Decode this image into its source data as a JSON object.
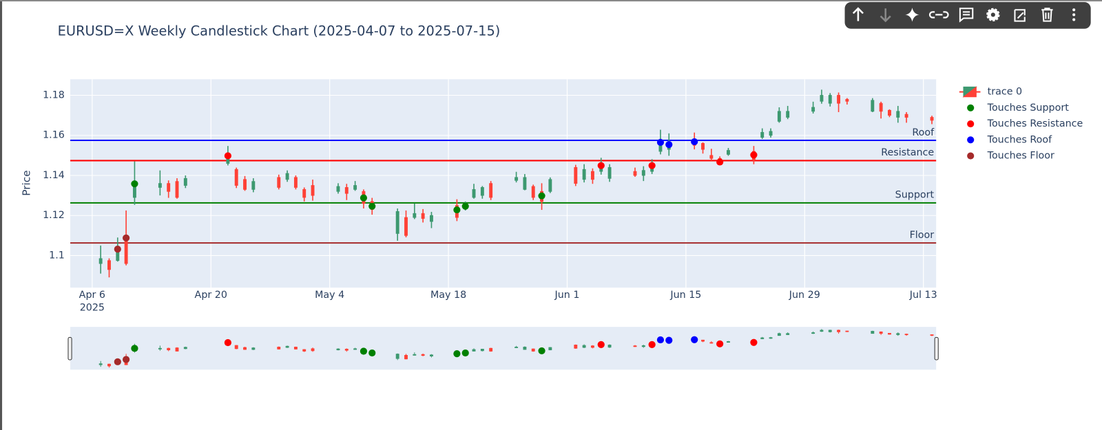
{
  "chart_data": {
    "type": "candlestick",
    "title": "EURUSD=X Weekly Candlestick Chart (2025-04-07 to 2025-07-15)",
    "y_title": "Price",
    "x": [
      "2025-04-07",
      "2025-04-08",
      "2025-04-09",
      "2025-04-10",
      "2025-04-11",
      "2025-04-14",
      "2025-04-15",
      "2025-04-16",
      "2025-04-17",
      "2025-04-22",
      "2025-04-23",
      "2025-04-24",
      "2025-04-25",
      "2025-04-28",
      "2025-04-29",
      "2025-04-30",
      "2025-05-01",
      "2025-05-02",
      "2025-05-05",
      "2025-05-06",
      "2025-05-07",
      "2025-05-08",
      "2025-05-09",
      "2025-05-12",
      "2025-05-13",
      "2025-05-14",
      "2025-05-15",
      "2025-05-16",
      "2025-05-19",
      "2025-05-20",
      "2025-05-21",
      "2025-05-22",
      "2025-05-23",
      "2025-05-26",
      "2025-05-27",
      "2025-05-28",
      "2025-05-29",
      "2025-05-30",
      "2025-06-02",
      "2025-06-03",
      "2025-06-04",
      "2025-06-05",
      "2025-06-06",
      "2025-06-09",
      "2025-06-10",
      "2025-06-11",
      "2025-06-12",
      "2025-06-13",
      "2025-06-16",
      "2025-06-17",
      "2025-06-18",
      "2025-06-19",
      "2025-06-20",
      "2025-06-23",
      "2025-06-24",
      "2025-06-25",
      "2025-06-26",
      "2025-06-27",
      "2025-06-30",
      "2025-07-01",
      "2025-07-02",
      "2025-07-03",
      "2025-07-04",
      "2025-07-07",
      "2025-07-08",
      "2025-07-09",
      "2025-07-10",
      "2025-07-11",
      "2025-07-14"
    ],
    "candles": {
      "name": "trace 0",
      "increasing_color": "#3d9970",
      "decreasing_color": "#ff4136",
      "open": [
        1.096,
        1.0975,
        1.0975,
        1.1095,
        1.129,
        1.134,
        1.136,
        1.137,
        1.135,
        1.146,
        1.143,
        1.138,
        1.133,
        1.139,
        1.138,
        1.139,
        1.133,
        1.135,
        1.132,
        1.134,
        1.133,
        1.132,
        1.127,
        1.111,
        1.119,
        1.119,
        1.121,
        1.117,
        1.125,
        1.1235,
        1.129,
        1.13,
        1.136,
        1.1375,
        1.133,
        1.1345,
        1.132,
        1.132,
        1.144,
        1.138,
        1.142,
        1.142,
        1.1385,
        1.142,
        1.14,
        1.142,
        1.152,
        1.153,
        1.158,
        1.156,
        1.15,
        1.1485,
        1.1505,
        1.152,
        1.159,
        1.16,
        1.167,
        1.169,
        1.172,
        1.177,
        1.176,
        1.18,
        1.178,
        1.172,
        1.176,
        1.1725,
        1.169,
        1.1705,
        1.169
      ],
      "high": [
        1.105,
        1.0986,
        1.109,
        1.1225,
        1.147,
        1.1425,
        1.1375,
        1.1386,
        1.14,
        1.1547,
        1.1439,
        1.1397,
        1.1386,
        1.1404,
        1.1425,
        1.14,
        1.134,
        1.1379,
        1.1361,
        1.1358,
        1.1372,
        1.133,
        1.1288,
        1.1235,
        1.1225,
        1.126,
        1.1232,
        1.1218,
        1.1281,
        1.127,
        1.1358,
        1.1347,
        1.1372,
        1.1418,
        1.1407,
        1.1354,
        1.1361,
        1.139,
        1.1453,
        1.1456,
        1.1435,
        1.1488,
        1.1456,
        1.1439,
        1.1446,
        1.1481,
        1.1628,
        1.161,
        1.1614,
        1.1565,
        1.1533,
        1.1495,
        1.1537,
        1.1547,
        1.1635,
        1.1635,
        1.174,
        1.1747,
        1.1768,
        1.1828,
        1.1811,
        1.1814,
        1.1786,
        1.1786,
        1.1768,
        1.173,
        1.1747,
        1.1716,
        1.1698
      ],
      "low": [
        1.091,
        1.0891,
        1.097,
        1.0951,
        1.1253,
        1.13,
        1.1288,
        1.1284,
        1.1337,
        1.145,
        1.1337,
        1.1323,
        1.1316,
        1.133,
        1.1368,
        1.133,
        1.127,
        1.1274,
        1.1309,
        1.1277,
        1.1323,
        1.1235,
        1.1204,
        1.1074,
        1.1091,
        1.1182,
        1.1165,
        1.1137,
        1.1172,
        1.1225,
        1.1284,
        1.1284,
        1.1277,
        1.1365,
        1.1326,
        1.1277,
        1.1228,
        1.1312,
        1.1347,
        1.1365,
        1.1358,
        1.1404,
        1.1368,
        1.1393,
        1.1372,
        1.1407,
        1.1505,
        1.1498,
        1.153,
        1.1509,
        1.1474,
        1.146,
        1.1498,
        1.1456,
        1.1582,
        1.1589,
        1.1663,
        1.1681,
        1.1709,
        1.1758,
        1.1744,
        1.1716,
        1.1754,
        1.1716,
        1.1684,
        1.1691,
        1.1663,
        1.1663,
        1.1656
      ],
      "close": [
        1.0985,
        1.093,
        1.1035,
        1.096,
        1.136,
        1.136,
        1.132,
        1.129,
        1.1385,
        1.15,
        1.135,
        1.133,
        1.137,
        1.134,
        1.141,
        1.134,
        1.129,
        1.13,
        1.1345,
        1.131,
        1.135,
        1.126,
        1.123,
        1.122,
        1.11,
        1.121,
        1.1185,
        1.12,
        1.119,
        1.1255,
        1.133,
        1.134,
        1.129,
        1.139,
        1.139,
        1.129,
        1.127,
        1.138,
        1.136,
        1.143,
        1.138,
        1.144,
        1.144,
        1.14,
        1.1425,
        1.145,
        1.156,
        1.156,
        1.155,
        1.153,
        1.1485,
        1.147,
        1.1525,
        1.148,
        1.1615,
        1.162,
        1.172,
        1.172,
        1.174,
        1.18,
        1.18,
        1.176,
        1.177,
        1.1775,
        1.172,
        1.17,
        1.172,
        1.169,
        1.1675
      ]
    },
    "series": [
      {
        "name": "Touches Support",
        "color": "#008000",
        "x": [
          "2025-04-11",
          "2025-05-08",
          "2025-05-09",
          "2025-05-19",
          "2025-05-20",
          "2025-05-29"
        ],
        "values": [
          1.1358,
          1.1288,
          1.1246,
          1.1228,
          1.1246,
          1.1298
        ]
      },
      {
        "name": "Touches Resistance",
        "color": "#ff0000",
        "x": [
          "2025-04-22",
          "2025-06-05",
          "2025-06-11",
          "2025-06-19",
          "2025-06-23"
        ],
        "values": [
          1.1498,
          1.1449,
          1.1449,
          1.1467,
          1.1502
        ]
      },
      {
        "name": "Touches Roof",
        "color": "#0000ff",
        "x": [
          "2025-06-12",
          "2025-06-13",
          "2025-06-16"
        ],
        "values": [
          1.1565,
          1.1554,
          1.1568
        ]
      },
      {
        "name": "Touches Floor",
        "color": "#a52a2a",
        "x": [
          "2025-04-09",
          "2025-04-10"
        ],
        "values": [
          1.1032,
          1.1088
        ]
      }
    ],
    "levels": [
      {
        "label": "Roof",
        "value": 1.1575,
        "color": "#0000ff"
      },
      {
        "label": "Resistance",
        "value": 1.1474,
        "color": "#ff0000"
      },
      {
        "label": "Support",
        "value": 1.1263,
        "color": "#008000"
      },
      {
        "label": "Floor",
        "value": 1.1063,
        "color": "#a52a2a"
      }
    ],
    "xlim": [
      "2025-04-03T10:00",
      "2025-07-14T12:00"
    ],
    "xticks": [
      {
        "value": "2025-04-06",
        "label": "Apr 6\n2025"
      },
      {
        "value": "2025-04-20",
        "label": "Apr 20"
      },
      {
        "value": "2025-05-04",
        "label": "May 4"
      },
      {
        "value": "2025-05-18",
        "label": "May 18"
      },
      {
        "value": "2025-06-01",
        "label": "Jun 1"
      },
      {
        "value": "2025-06-15",
        "label": "Jun 15"
      },
      {
        "value": "2025-06-29",
        "label": "Jun 29"
      },
      {
        "value": "2025-07-13",
        "label": "Jul 13"
      }
    ],
    "ylim": [
      1.084,
      1.188
    ],
    "yticks": [
      1.1,
      1.12,
      1.14,
      1.16,
      1.18
    ],
    "grid": true,
    "legend": "right",
    "range_slider": true
  }
}
